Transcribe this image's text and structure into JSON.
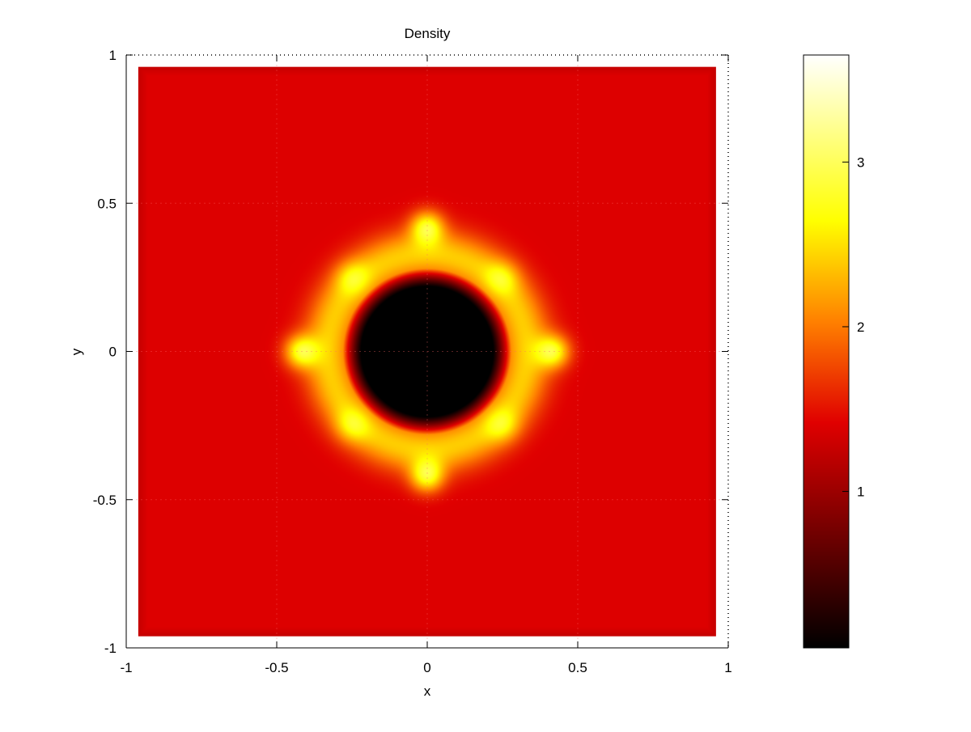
{
  "chart_data": {
    "type": "heatmap",
    "title": "Density",
    "xlabel": "x",
    "ylabel": "y",
    "xlim": [
      -1,
      1
    ],
    "ylim": [
      -1,
      1
    ],
    "x_ticks": [
      -1,
      -0.5,
      0,
      0.5,
      1
    ],
    "y_ticks": [
      -1,
      -0.5,
      0,
      0.5,
      1
    ],
    "x_tick_labels": [
      "-1",
      "-0.5",
      "0",
      "0.5",
      "1"
    ],
    "y_tick_labels": [
      "-1",
      "-0.5",
      "0",
      "0.5",
      "1"
    ],
    "data_extent": {
      "x": [
        -0.96,
        0.96
      ],
      "y": [
        -0.96,
        0.96
      ]
    },
    "background_value": 1.4,
    "ring": {
      "center": [
        0,
        0
      ],
      "inner_void_value": 0.05,
      "inner_radius": 0.22,
      "ring_radius": 0.33,
      "ring_peak_value": 2.4,
      "hotspots": [
        {
          "x": 0,
          "y": 0.42,
          "value": 3.6
        },
        {
          "x": 0,
          "y": -0.42,
          "value": 3.6
        },
        {
          "x": -0.42,
          "y": 0,
          "value": 3.6
        },
        {
          "x": 0.42,
          "y": 0,
          "value": 3.6
        },
        {
          "x": 0.25,
          "y": 0.25,
          "value": 2.9
        },
        {
          "x": -0.25,
          "y": 0.25,
          "value": 2.9
        },
        {
          "x": 0.25,
          "y": -0.25,
          "value": 2.9
        },
        {
          "x": -0.25,
          "y": -0.25,
          "value": 2.9
        }
      ]
    },
    "colorbar": {
      "min": 0.05,
      "max": 3.65,
      "ticks": [
        1,
        2,
        3
      ],
      "tick_labels": [
        "1",
        "2",
        "3"
      ],
      "colormap": "hot",
      "colors": [
        "#000000",
        "#e00000",
        "#ff8000",
        "#ffff00",
        "#ffffff"
      ]
    },
    "grid": true,
    "legend": "none"
  }
}
